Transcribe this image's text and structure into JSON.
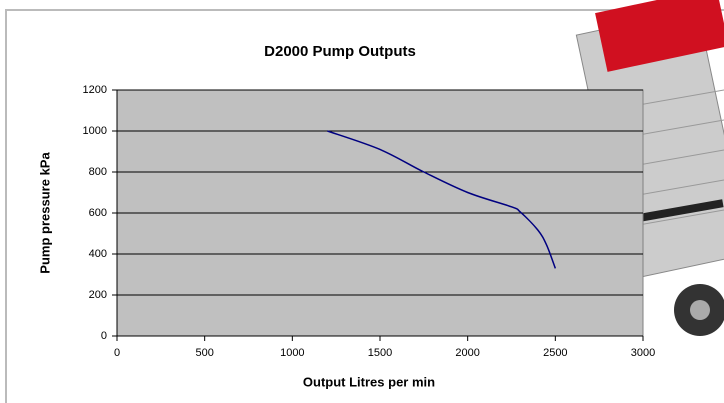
{
  "chart_data": {
    "type": "line",
    "title": "D2000 Pump Outputs",
    "x_label": "Output  Litres per min",
    "y_label": "Pump pressure kPa",
    "series": [
      {
        "name": "D2000",
        "color": "#000080",
        "x": [
          1200,
          1500,
          1750,
          2000,
          2250,
          2300,
          2400,
          2450,
          2500
        ],
        "values": [
          1000,
          910,
          800,
          700,
          630,
          605,
          517,
          444,
          330
        ]
      }
    ],
    "xlim": [
      0,
      3000
    ],
    "xticks": [
      0,
      500,
      1000,
      1500,
      2000,
      2500,
      3000
    ],
    "ylim": [
      0,
      1200
    ],
    "yticks": [
      0,
      200,
      400,
      600,
      800,
      1000,
      1200
    ],
    "grid": true,
    "plot_background": "#c0c0c0"
  }
}
